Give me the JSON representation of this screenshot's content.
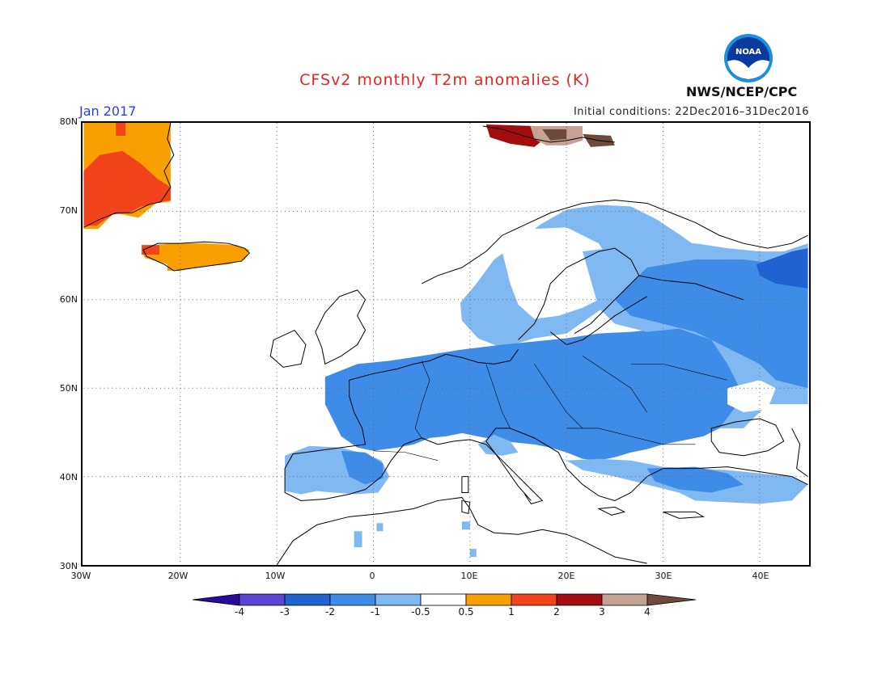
{
  "header": {
    "title": "CFSv2 monthly T2m anomalies (K)",
    "period": "Jan 2017",
    "initial_conditions": "Initial conditions: 22Dec2016–31Dec2016",
    "agency": "NWS/NCEP/CPC",
    "logo_text": "NOAA"
  },
  "axes": {
    "lat_labels": [
      "80N",
      "70N",
      "60N",
      "50N",
      "40N",
      "30N"
    ],
    "lon_labels": [
      "30W",
      "20W",
      "10W",
      "0",
      "10E",
      "20E",
      "30E",
      "40E"
    ]
  },
  "colorbar": {
    "labels": [
      "-4",
      "-3",
      "-2",
      "-1",
      "-0.5",
      "0.5",
      "1",
      "2",
      "3",
      "4"
    ],
    "colors": [
      "#2a0a9e",
      "#5a45d6",
      "#1f62d0",
      "#3f8ce8",
      "#80b8f2",
      "#ffffff",
      "#f9a000",
      "#f2431d",
      "#a30d0d",
      "#c6a195",
      "#6e4a3c"
    ]
  },
  "map_extent": {
    "lon": [
      -30,
      45
    ],
    "lat": [
      30,
      80
    ]
  }
}
